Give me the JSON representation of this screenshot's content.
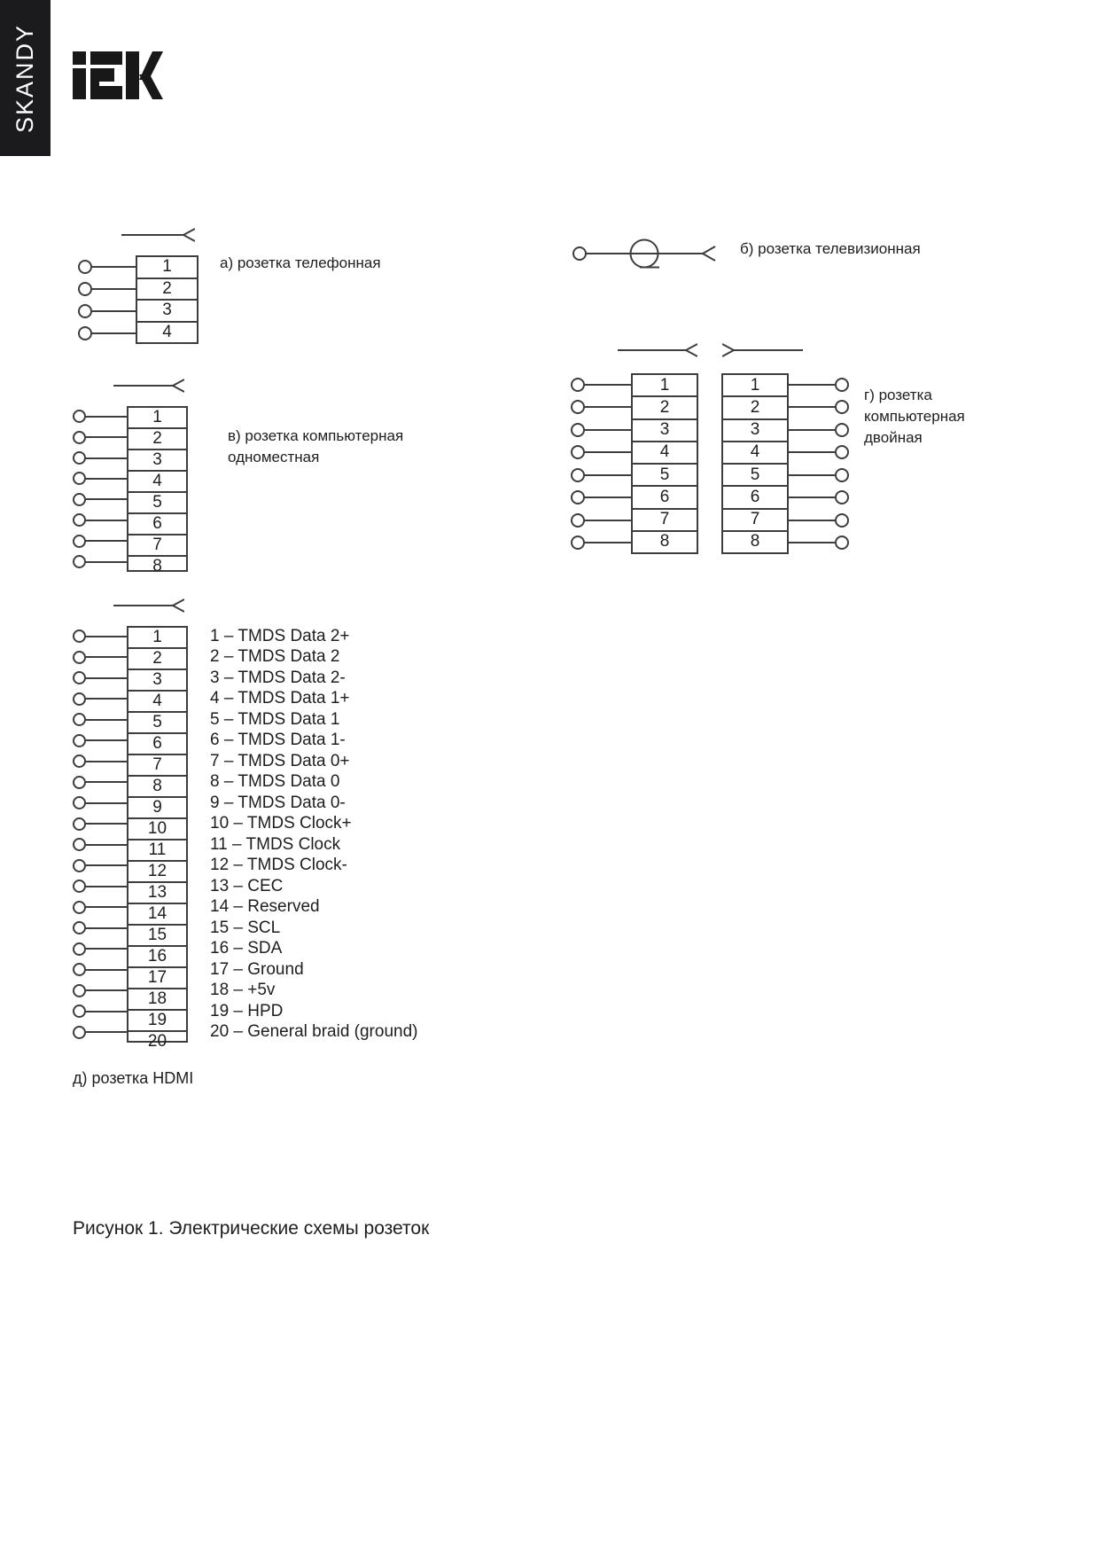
{
  "sidebar": {
    "label": "SKANDY"
  },
  "logo": {
    "brand": "IEK"
  },
  "diagram_a": {
    "label": "а) розетка телефонная",
    "pins": [
      "1",
      "2",
      "3",
      "4"
    ]
  },
  "diagram_b": {
    "label": "б) розетка телевизионная"
  },
  "diagram_v": {
    "label_lines": [
      "в) розетка компьютерная",
      "одноместная"
    ],
    "pins": [
      "1",
      "2",
      "3",
      "4",
      "5",
      "6",
      "7",
      "8"
    ]
  },
  "diagram_g": {
    "label_lines": [
      "г) розетка",
      "компьютерная",
      "двойная"
    ],
    "left_pins": [
      "1",
      "2",
      "3",
      "4",
      "5",
      "6",
      "7",
      "8"
    ],
    "right_pins": [
      "1",
      "2",
      "3",
      "4",
      "5",
      "6",
      "7",
      "8"
    ]
  },
  "diagram_d": {
    "label": "д) розетка HDMI",
    "pins": [
      "1",
      "2",
      "3",
      "4",
      "5",
      "6",
      "7",
      "8",
      "9",
      "10",
      "11",
      "12",
      "13",
      "14",
      "15",
      "16",
      "17",
      "18",
      "19",
      "20"
    ],
    "pin_descriptions": [
      "1 – TMDS Data 2+",
      "2 – TMDS Data 2",
      "3 – TMDS Data 2-",
      "4 – TMDS Data 1+",
      "5 – TMDS Data 1",
      "6 – TMDS Data 1-",
      "7 – TMDS Data 0+",
      "8 – TMDS Data 0",
      "9 – TMDS Data 0-",
      "10 – TMDS Clock+",
      "11 – TMDS Clock",
      "12 – TMDS Clock-",
      "13 – CEC",
      "14 – Reserved",
      "15 – SCL",
      "16 – SDA",
      "17 – Ground",
      "18 – +5v",
      "19 – HPD",
      "20 – General braid (ground)"
    ]
  },
  "caption": "Рисунок 1. Электрические схемы розеток",
  "colors": {
    "line": "#3d3d3d",
    "sidebar_bg": "#1b1b1e"
  }
}
